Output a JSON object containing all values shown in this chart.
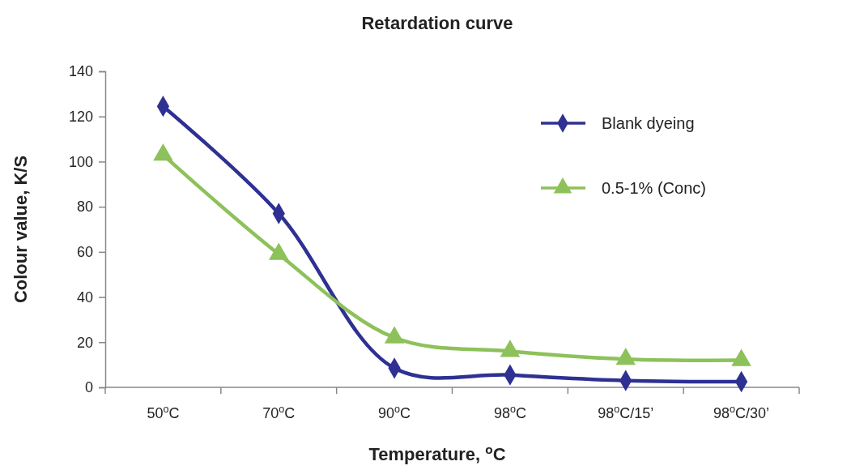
{
  "chart_data": {
    "type": "line",
    "title": "Retardation curve",
    "xlabel": "Temperature, $^{o}$C",
    "ylabel": "Colour value, K/S",
    "categories": [
      "50$^{o}$C",
      "70$^{o}$C",
      "90$^{o}$C",
      "98$^{o}$C",
      "98$^{o}$C/15’",
      "98$^{o}$C/30’"
    ],
    "series": [
      {
        "name": "Blank dyeing",
        "color": "#2e3192",
        "marker": "diamond",
        "values": [
          124.5,
          77,
          8.5,
          5.5,
          3,
          2.5
        ]
      },
      {
        "name": "0.5-1% (Conc)",
        "color": "#8dc15a",
        "marker": "triangle",
        "values": [
          103,
          59,
          22,
          16,
          12.5,
          12
        ]
      }
    ],
    "ylim": [
      0,
      140
    ],
    "yticks": [
      0,
      20,
      40,
      60,
      80,
      100,
      120,
      140
    ],
    "legend": "top right",
    "line_style": "solid"
  }
}
